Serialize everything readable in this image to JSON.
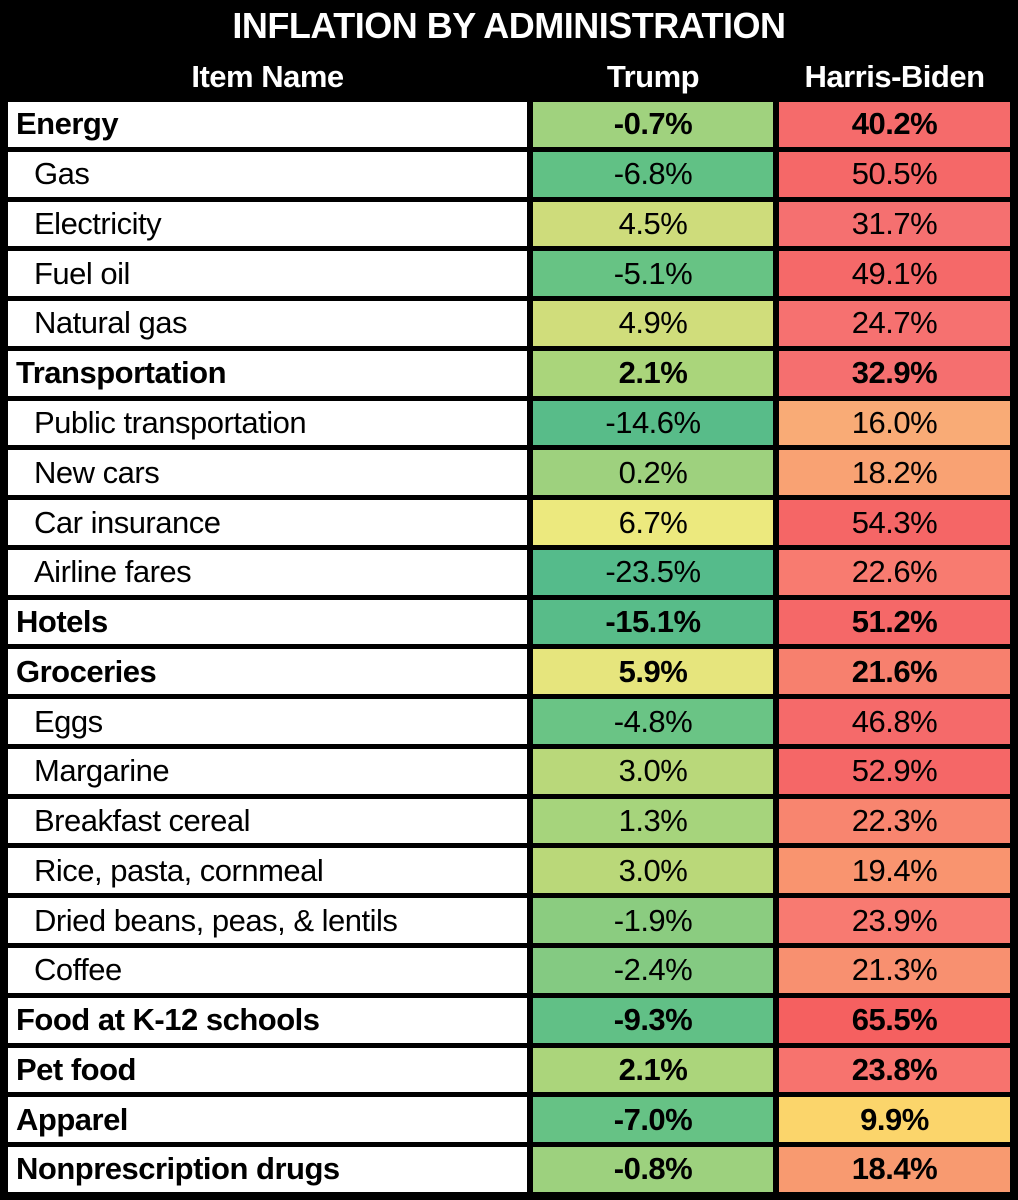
{
  "title": "INFLATION BY ADMINISTRATION",
  "columns": {
    "item": "Item Name",
    "trump": "Trump",
    "harris_biden": "Harris-Biden"
  },
  "colors": {
    "page_bg": "#000000",
    "grid_lines": "#000000",
    "item_cell_bg": "#ffffff",
    "header_text": "#ffffff",
    "cell_text": "#000000",
    "scale_min_green": "#55bb8b",
    "scale_mid_yellow": "#ece97e",
    "scale_max_red": "#f55f5f"
  },
  "table": {
    "rows": [
      {
        "item": "Energy",
        "bold": true,
        "trump": "-0.7%",
        "hb": "40.2%",
        "trump_color": "#a0d27e",
        "hb_color": "#f56b6b"
      },
      {
        "item": "Gas",
        "bold": false,
        "trump": "-6.8%",
        "hb": "50.5%",
        "trump_color": "#61c185",
        "hb_color": "#f56868"
      },
      {
        "item": "Electricity",
        "bold": false,
        "trump": "4.5%",
        "hb": "31.7%",
        "trump_color": "#cedc7b",
        "hb_color": "#f57070"
      },
      {
        "item": "Fuel oil",
        "bold": false,
        "trump": "-5.1%",
        "hb": "49.1%",
        "trump_color": "#67c384",
        "hb_color": "#f56969"
      },
      {
        "item": "Natural gas",
        "bold": false,
        "trump": "4.9%",
        "hb": "24.7%",
        "trump_color": "#d0dd7b",
        "hb_color": "#f67170"
      },
      {
        "item": "Transportation",
        "bold": true,
        "trump": "2.1%",
        "hb": "32.9%",
        "trump_color": "#aad57b",
        "hb_color": "#f56f6f"
      },
      {
        "item": "Public transportation",
        "bold": false,
        "trump": "-14.6%",
        "hb": "16.0%",
        "trump_color": "#58bc89",
        "hb_color": "#f9ab76"
      },
      {
        "item": "New cars",
        "bold": false,
        "trump": "0.2%",
        "hb": "18.2%",
        "trump_color": "#9ed17e",
        "hb_color": "#f9a273"
      },
      {
        "item": "Car insurance",
        "bold": false,
        "trump": "6.7%",
        "hb": "54.3%",
        "trump_color": "#ece97e",
        "hb_color": "#f56666"
      },
      {
        "item": "Airline fares",
        "bold": false,
        "trump": "-23.5%",
        "hb": "22.6%",
        "trump_color": "#55bb8b",
        "hb_color": "#f87b70"
      },
      {
        "item": "Hotels",
        "bold": true,
        "trump": "-15.1%",
        "hb": "51.2%",
        "trump_color": "#58bc89",
        "hb_color": "#f56868"
      },
      {
        "item": "Groceries",
        "bold": true,
        "trump": "5.9%",
        "hb": "21.6%",
        "trump_color": "#e6e57d",
        "hb_color": "#f7806e"
      },
      {
        "item": "Eggs",
        "bold": false,
        "trump": "-4.8%",
        "hb": "46.8%",
        "trump_color": "#6ac485",
        "hb_color": "#f56a6a"
      },
      {
        "item": "Margarine",
        "bold": false,
        "trump": "3.0%",
        "hb": "52.9%",
        "trump_color": "#b9d87a",
        "hb_color": "#f56767"
      },
      {
        "item": "Breakfast cereal",
        "bold": false,
        "trump": "1.3%",
        "hb": "22.3%",
        "trump_color": "#a6d47c",
        "hb_color": "#f8856f"
      },
      {
        "item": "Rice, pasta, cornmeal",
        "bold": false,
        "trump": "3.0%",
        "hb": "19.4%",
        "trump_color": "#bad879",
        "hb_color": "#f9946f"
      },
      {
        "item": "Dried beans, peas, & lentils",
        "bold": false,
        "trump": "-1.9%",
        "hb": "23.9%",
        "trump_color": "#8bcc80",
        "hb_color": "#f87a71"
      },
      {
        "item": "Coffee",
        "bold": false,
        "trump": "-2.4%",
        "hb": "21.3%",
        "trump_color": "#84ca82",
        "hb_color": "#f89070"
      },
      {
        "item": "Food at K-12 schools",
        "bold": true,
        "trump": "-9.3%",
        "hb": "65.5%",
        "trump_color": "#61c086",
        "hb_color": "#f56060"
      },
      {
        "item": "Pet food",
        "bold": true,
        "trump": "2.1%",
        "hb": "23.8%",
        "trump_color": "#abd57b",
        "hb_color": "#f7736e"
      },
      {
        "item": "Apparel",
        "bold": true,
        "trump": "-7.0%",
        "hb": "9.9%",
        "trump_color": "#66c285",
        "hb_color": "#fbd56b"
      },
      {
        "item": "Nonprescription drugs",
        "bold": true,
        "trump": "-0.8%",
        "hb": "18.4%",
        "trump_color": "#9dd17e",
        "hb_color": "#f89a70"
      }
    ]
  },
  "chart_data": {
    "type": "table",
    "title": "INFLATION BY ADMINISTRATION",
    "unit": "%",
    "columns": [
      "Item Name",
      "Trump",
      "Harris-Biden"
    ],
    "categories": [
      "Energy",
      "Gas",
      "Electricity",
      "Fuel oil",
      "Natural gas",
      "Transportation",
      "Public transportation",
      "New cars",
      "Car insurance",
      "Airline fares",
      "Hotels",
      "Groceries",
      "Eggs",
      "Margarine",
      "Breakfast cereal",
      "Rice, pasta, cornmeal",
      "Dried beans, peas, & lentils",
      "Coffee",
      "Food at K-12 schools",
      "Pet food",
      "Apparel",
      "Nonprescription drugs"
    ],
    "category_is_group_header": [
      true,
      false,
      false,
      false,
      false,
      true,
      false,
      false,
      false,
      false,
      true,
      true,
      false,
      false,
      false,
      false,
      false,
      false,
      true,
      true,
      true,
      true
    ],
    "series": [
      {
        "name": "Trump",
        "values": [
          -0.7,
          -6.8,
          4.5,
          -5.1,
          4.9,
          2.1,
          -14.6,
          0.2,
          6.7,
          -23.5,
          -15.1,
          5.9,
          -4.8,
          3.0,
          1.3,
          3.0,
          -1.9,
          -2.4,
          -9.3,
          2.1,
          -7.0,
          -0.8
        ]
      },
      {
        "name": "Harris-Biden",
        "values": [
          40.2,
          50.5,
          31.7,
          49.1,
          24.7,
          32.9,
          16.0,
          18.2,
          54.3,
          22.6,
          51.2,
          21.6,
          46.8,
          52.9,
          22.3,
          19.4,
          23.9,
          21.3,
          65.5,
          23.8,
          9.9,
          18.4
        ]
      }
    ],
    "layout_hints": {
      "grid": "thick black gridlines on black background",
      "value_cell_coloring": "green-yellow-red conditional formatting by inflation value"
    }
  }
}
